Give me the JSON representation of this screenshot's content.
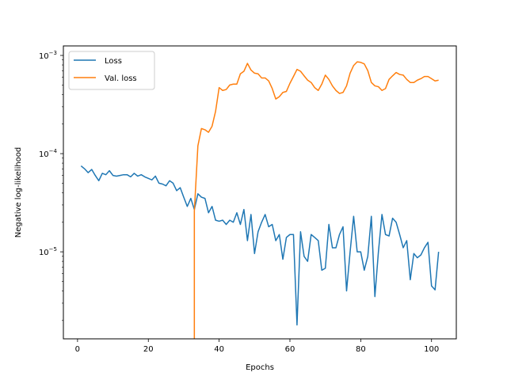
{
  "chart_data": {
    "type": "line",
    "xlabel": "Epochs",
    "ylabel": "Negative log-likelihood",
    "xlim": [
      -4,
      107
    ],
    "ylim": [
      1.3e-06,
      0.00125
    ],
    "yscale": "log",
    "grid": false,
    "legend_position": "top-left",
    "x_ticks": [
      {
        "value": 0,
        "label": "0"
      },
      {
        "value": 20,
        "label": "20"
      },
      {
        "value": 40,
        "label": "40"
      },
      {
        "value": 60,
        "label": "60"
      },
      {
        "value": 80,
        "label": "80"
      },
      {
        "value": 100,
        "label": "100"
      }
    ],
    "y_ticks": [
      {
        "value": 1e-05,
        "base": "10",
        "exp": "−5"
      },
      {
        "value": 0.0001,
        "base": "10",
        "exp": "−4"
      },
      {
        "value": 0.001,
        "base": "10",
        "exp": "−3"
      }
    ],
    "series": [
      {
        "name": "Loss",
        "color": "#1f77b4",
        "x": [
          1,
          2,
          3,
          4,
          5,
          6,
          7,
          8,
          9,
          10,
          11,
          12,
          13,
          14,
          15,
          16,
          17,
          18,
          19,
          20,
          21,
          22,
          23,
          24,
          25,
          26,
          27,
          28,
          29,
          30,
          31,
          32,
          33,
          34,
          35,
          36,
          37,
          38,
          39,
          40,
          41,
          42,
          43,
          44,
          45,
          46,
          47,
          48,
          49,
          50,
          51,
          52,
          53,
          54,
          55,
          56,
          57,
          58,
          59,
          60,
          61,
          62,
          63,
          64,
          65,
          66,
          67,
          68,
          69,
          70,
          71,
          72,
          73,
          74,
          75,
          76,
          77,
          78,
          79,
          80,
          81,
          82,
          83,
          84,
          85,
          86,
          87,
          88,
          89,
          90,
          91,
          92,
          93,
          94,
          95,
          96,
          97,
          98,
          99,
          100,
          101,
          102
        ],
        "y": [
          7.5e-05,
          7e-05,
          6.4e-05,
          6.9e-05,
          6e-05,
          5.3e-05,
          6.3e-05,
          6.1e-05,
          6.7e-05,
          6e-05,
          5.9e-05,
          6e-05,
          6.1e-05,
          6.1e-05,
          5.8e-05,
          6.3e-05,
          5.9e-05,
          6.1e-05,
          5.8e-05,
          5.6e-05,
          5.4e-05,
          5.9e-05,
          5e-05,
          4.9e-05,
          4.7e-05,
          5.3e-05,
          5e-05,
          4.2e-05,
          4.5e-05,
          3.6e-05,
          2.9e-05,
          3.5e-05,
          2.7e-05,
          3.9e-05,
          3.6e-05,
          3.5e-05,
          2.5e-05,
          2.9e-05,
          2.1e-05,
          2.05e-05,
          2.1e-05,
          1.9e-05,
          2.1e-05,
          2e-05,
          2.5e-05,
          1.9e-05,
          2.7e-05,
          1.3e-05,
          2.4e-05,
          9.6e-06,
          1.6e-05,
          2e-05,
          2.4e-05,
          1.8e-05,
          1.9e-05,
          1.3e-05,
          1.5e-05,
          8.4e-06,
          1.4e-05,
          1.5e-05,
          1.5e-05,
          1.8e-06,
          1.6e-05,
          9e-06,
          8e-06,
          1.5e-05,
          1.4e-05,
          1.3e-05,
          6.5e-06,
          6.8e-06,
          1.9e-05,
          1.1e-05,
          1.1e-05,
          1.5e-05,
          1.8e-05,
          4e-06,
          1e-05,
          2.3e-05,
          1e-05,
          1e-05,
          6.5e-06,
          9e-06,
          2.3e-05,
          3.5e-06,
          1e-05,
          2.4e-05,
          1.5e-05,
          1.45e-05,
          2.2e-05,
          2e-05,
          1.5e-05,
          1.1e-05,
          1.3e-05,
          5.2e-06,
          9.6e-06,
          8.7e-06,
          9.3e-06,
          1.1e-05,
          1.25e-05,
          4.5e-06,
          4.1e-06,
          1e-05
        ]
      },
      {
        "name": "Val. loss",
        "color": "#ff7f0e",
        "x": [
          33,
          33,
          34,
          35,
          36,
          37,
          38,
          39,
          40,
          41,
          42,
          43,
          44,
          45,
          46,
          47,
          48,
          49,
          50,
          51,
          52,
          53,
          54,
          55,
          56,
          57,
          58,
          59,
          60,
          61,
          62,
          63,
          64,
          65,
          66,
          67,
          68,
          69,
          70,
          71,
          72,
          73,
          74,
          75,
          76,
          77,
          78,
          79,
          80,
          81,
          82,
          83,
          84,
          85,
          86,
          87,
          88,
          89,
          90,
          91,
          92,
          93,
          94,
          95,
          96,
          97,
          98,
          99,
          100,
          101,
          102
        ],
        "y": [
          1.3e-06,
          2.6e-05,
          0.00012,
          0.00018,
          0.000175,
          0.000165,
          0.00019,
          0.00027,
          0.00047,
          0.00044,
          0.00045,
          0.0005,
          0.00051,
          0.00051,
          0.00065,
          0.00069,
          0.00083,
          0.00071,
          0.00066,
          0.00065,
          0.00059,
          0.00059,
          0.00055,
          0.00046,
          0.00036,
          0.00038,
          0.00042,
          0.00043,
          0.00052,
          0.00061,
          0.00072,
          0.00069,
          0.00062,
          0.00056,
          0.00053,
          0.00047,
          0.00044,
          0.00051,
          0.00063,
          0.00057,
          0.00049,
          0.00044,
          0.00041,
          0.00042,
          0.00049,
          0.00066,
          0.00079,
          0.00086,
          0.00085,
          0.00082,
          0.0007,
          0.00053,
          0.00049,
          0.00048,
          0.00044,
          0.00046,
          0.00057,
          0.00062,
          0.00067,
          0.00064,
          0.00063,
          0.00057,
          0.00053,
          0.00053,
          0.00056,
          0.00058,
          0.00061,
          0.00061,
          0.00058,
          0.00055,
          0.00056
        ]
      }
    ]
  }
}
